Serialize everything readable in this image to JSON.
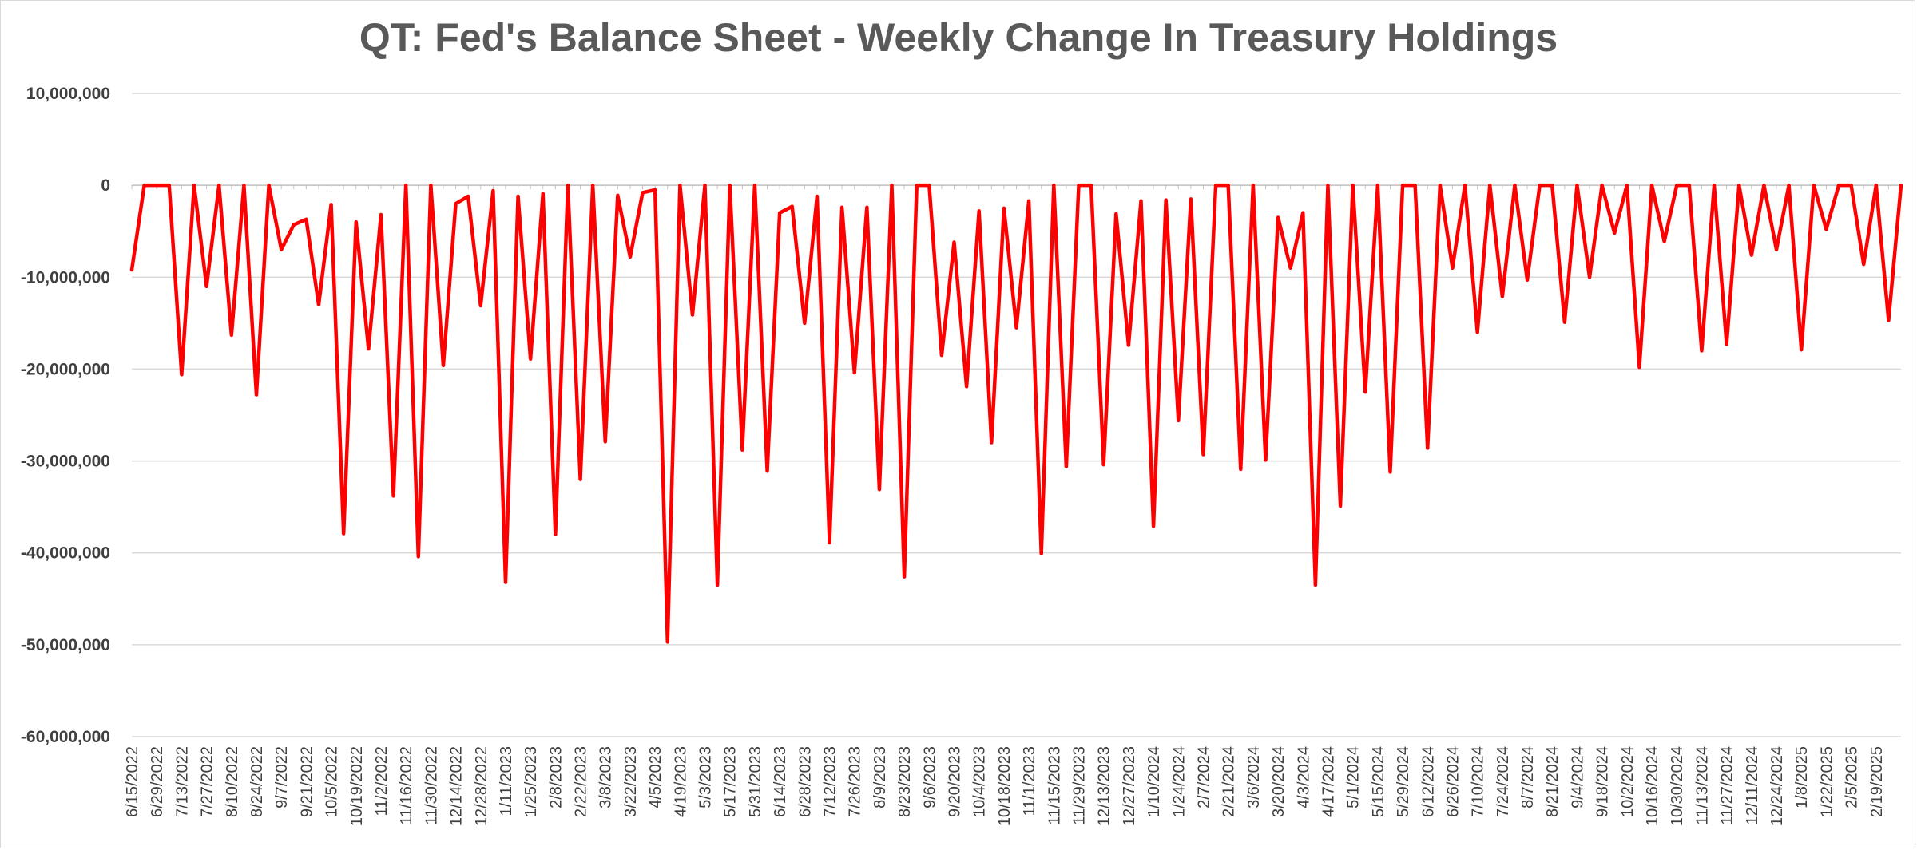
{
  "chart_data": {
    "type": "line",
    "title": "QT: Fed's Balance Sheet - Weekly Change In Treasury Holdings",
    "xlabel": "",
    "ylabel": "",
    "ylim": [
      -60000000,
      10000000
    ],
    "yticks": [
      10000000,
      0,
      -10000000,
      -20000000,
      -30000000,
      -40000000,
      -50000000,
      -60000000
    ],
    "ytick_labels": [
      "10,000,000",
      "0",
      "-10,000,000",
      "-20,000,000",
      "-30,000,000",
      "-40,000,000",
      "-50,000,000",
      "-60,000,000"
    ],
    "x_start": "6/15/2022",
    "x_tick_labels": [
      "6/15/2022",
      "6/29/2022",
      "7/13/2022",
      "7/27/2022",
      "8/10/2022",
      "8/24/2022",
      "9/7/2022",
      "9/21/2022",
      "10/5/2022",
      "10/19/2022",
      "11/2/2022",
      "11/16/2022",
      "11/30/2022",
      "12/14/2022",
      "12/28/2022",
      "1/11/2023",
      "1/25/2023",
      "2/8/2023",
      "2/22/2023",
      "3/8/2023",
      "3/22/2023",
      "4/5/2023",
      "4/19/2023",
      "5/3/2023",
      "5/17/2023",
      "5/31/2023",
      "6/14/2023",
      "6/28/2023",
      "7/12/2023",
      "7/26/2023",
      "8/9/2023",
      "8/23/2023",
      "9/6/2023",
      "9/20/2023",
      "10/4/2023",
      "10/18/2023",
      "11/1/2023",
      "11/15/2023",
      "11/29/2023",
      "12/13/2023",
      "12/27/2023",
      "1/10/2024",
      "1/24/2024",
      "2/7/2024",
      "2/21/2024",
      "3/6/2024",
      "3/20/2024",
      "4/3/2024",
      "4/17/2024",
      "5/1/2024",
      "5/15/2024",
      "5/29/2024",
      "6/12/2024",
      "6/26/2024",
      "7/10/2024",
      "7/24/2024",
      "8/7/2024",
      "8/21/2024",
      "9/4/2024",
      "9/18/2024",
      "10/2/2024",
      "10/16/2024",
      "10/30/2024",
      "11/13/2024",
      "11/27/2024",
      "12/11/2024",
      "12/24/2024",
      "1/8/2025",
      "1/22/2025",
      "2/5/2025",
      "2/19/2025"
    ],
    "grid": true,
    "legend": "none",
    "series": [
      {
        "color": "#ff0000",
        "values": [
          -9200000,
          0,
          0,
          0,
          -20600000,
          0,
          -11000000,
          0,
          -16300000,
          0,
          -22800000,
          0,
          -7000000,
          -4300000,
          -3700000,
          -13000000,
          -2100000,
          -37900000,
          -4000000,
          -17800000,
          -3200000,
          -33800000,
          0,
          -40400000,
          0,
          -19600000,
          -2000000,
          -1200000,
          -13100000,
          -600000,
          -43200000,
          -1200000,
          -18900000,
          -900000,
          -38000000,
          0,
          -32000000,
          0,
          -27900000,
          -1100000,
          -7800000,
          -800000,
          -500000,
          -49700000,
          0,
          -14100000,
          0,
          -43500000,
          0,
          -28800000,
          0,
          -31100000,
          -3000000,
          -2300000,
          -15000000,
          -1200000,
          -38900000,
          -2400000,
          -20400000,
          -2400000,
          -33100000,
          0,
          -42600000,
          0,
          0,
          -18500000,
          -6200000,
          -21900000,
          -2800000,
          -28000000,
          -2500000,
          -15500000,
          -1700000,
          -40100000,
          0,
          -30600000,
          0,
          0,
          -30400000,
          -3100000,
          -17400000,
          -1700000,
          -37100000,
          -1600000,
          -25600000,
          -1500000,
          -29300000,
          0,
          0,
          -30900000,
          0,
          -29900000,
          -3500000,
          -9000000,
          -3000000,
          -43500000,
          0,
          -34900000,
          0,
          -22500000,
          0,
          -31200000,
          0,
          0,
          -28600000,
          0,
          -9000000,
          0,
          -16000000,
          0,
          -12100000,
          0,
          -10300000,
          0,
          0,
          -14900000,
          0,
          -10000000,
          0,
          -5200000,
          0,
          -19800000,
          0,
          -6100000,
          0,
          0,
          -18000000,
          0,
          -17300000,
          0,
          -7600000,
          0,
          -7000000,
          0,
          -17900000,
          0,
          -4800000,
          0,
          0,
          -8600000,
          0,
          -14700000,
          0
        ]
      }
    ]
  }
}
